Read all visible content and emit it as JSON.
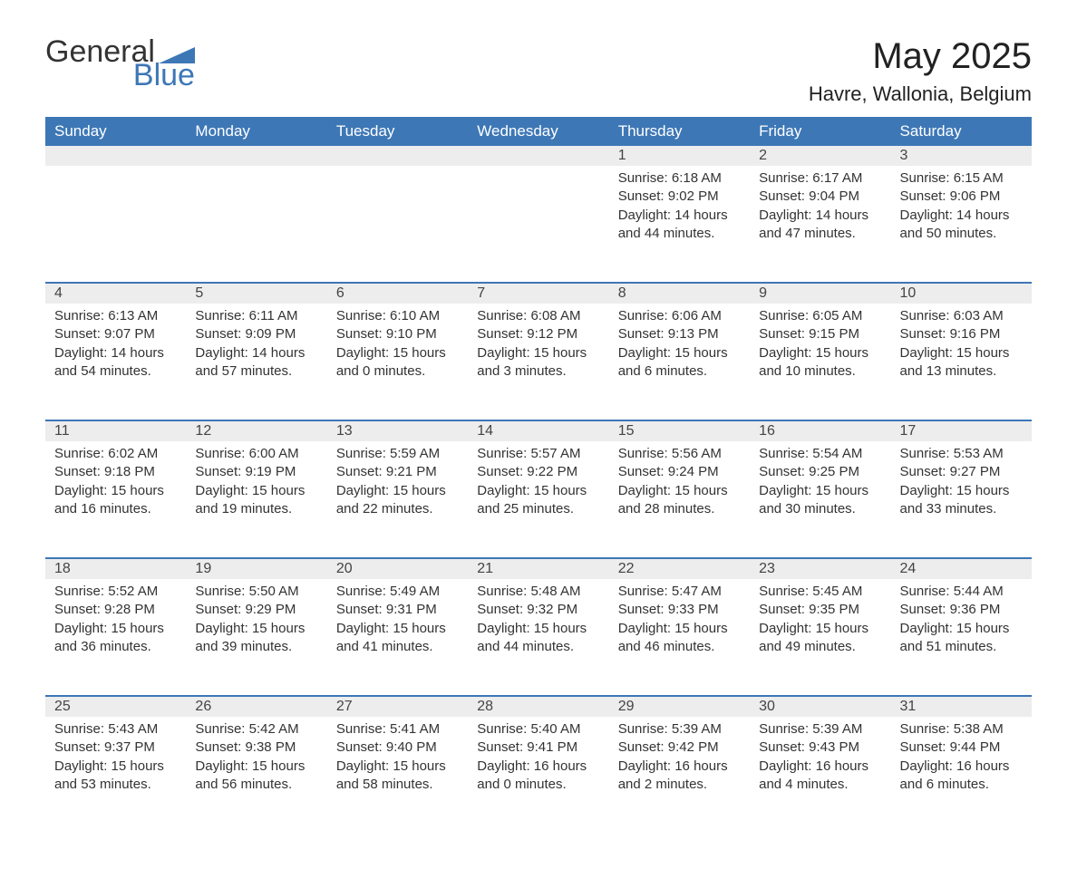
{
  "logo": {
    "text_general": "General",
    "text_blue": "Blue",
    "accent_color": "#3d77b6"
  },
  "title": "May 2025",
  "location": "Havre, Wallonia, Belgium",
  "colors": {
    "header_bg": "#3d77b6",
    "header_text": "#ffffff",
    "daynum_bg": "#ededed",
    "row_divider": "#3d77b6",
    "body_text": "#333333",
    "background": "#ffffff"
  },
  "weekdays": [
    "Sunday",
    "Monday",
    "Tuesday",
    "Wednesday",
    "Thursday",
    "Friday",
    "Saturday"
  ],
  "weeks": [
    [
      null,
      null,
      null,
      null,
      {
        "day": "1",
        "sunrise": "6:18 AM",
        "sunset": "9:02 PM",
        "daylight": "14 hours and 44 minutes."
      },
      {
        "day": "2",
        "sunrise": "6:17 AM",
        "sunset": "9:04 PM",
        "daylight": "14 hours and 47 minutes."
      },
      {
        "day": "3",
        "sunrise": "6:15 AM",
        "sunset": "9:06 PM",
        "daylight": "14 hours and 50 minutes."
      }
    ],
    [
      {
        "day": "4",
        "sunrise": "6:13 AM",
        "sunset": "9:07 PM",
        "daylight": "14 hours and 54 minutes."
      },
      {
        "day": "5",
        "sunrise": "6:11 AM",
        "sunset": "9:09 PM",
        "daylight": "14 hours and 57 minutes."
      },
      {
        "day": "6",
        "sunrise": "6:10 AM",
        "sunset": "9:10 PM",
        "daylight": "15 hours and 0 minutes."
      },
      {
        "day": "7",
        "sunrise": "6:08 AM",
        "sunset": "9:12 PM",
        "daylight": "15 hours and 3 minutes."
      },
      {
        "day": "8",
        "sunrise": "6:06 AM",
        "sunset": "9:13 PM",
        "daylight": "15 hours and 6 minutes."
      },
      {
        "day": "9",
        "sunrise": "6:05 AM",
        "sunset": "9:15 PM",
        "daylight": "15 hours and 10 minutes."
      },
      {
        "day": "10",
        "sunrise": "6:03 AM",
        "sunset": "9:16 PM",
        "daylight": "15 hours and 13 minutes."
      }
    ],
    [
      {
        "day": "11",
        "sunrise": "6:02 AM",
        "sunset": "9:18 PM",
        "daylight": "15 hours and 16 minutes."
      },
      {
        "day": "12",
        "sunrise": "6:00 AM",
        "sunset": "9:19 PM",
        "daylight": "15 hours and 19 minutes."
      },
      {
        "day": "13",
        "sunrise": "5:59 AM",
        "sunset": "9:21 PM",
        "daylight": "15 hours and 22 minutes."
      },
      {
        "day": "14",
        "sunrise": "5:57 AM",
        "sunset": "9:22 PM",
        "daylight": "15 hours and 25 minutes."
      },
      {
        "day": "15",
        "sunrise": "5:56 AM",
        "sunset": "9:24 PM",
        "daylight": "15 hours and 28 minutes."
      },
      {
        "day": "16",
        "sunrise": "5:54 AM",
        "sunset": "9:25 PM",
        "daylight": "15 hours and 30 minutes."
      },
      {
        "day": "17",
        "sunrise": "5:53 AM",
        "sunset": "9:27 PM",
        "daylight": "15 hours and 33 minutes."
      }
    ],
    [
      {
        "day": "18",
        "sunrise": "5:52 AM",
        "sunset": "9:28 PM",
        "daylight": "15 hours and 36 minutes."
      },
      {
        "day": "19",
        "sunrise": "5:50 AM",
        "sunset": "9:29 PM",
        "daylight": "15 hours and 39 minutes."
      },
      {
        "day": "20",
        "sunrise": "5:49 AM",
        "sunset": "9:31 PM",
        "daylight": "15 hours and 41 minutes."
      },
      {
        "day": "21",
        "sunrise": "5:48 AM",
        "sunset": "9:32 PM",
        "daylight": "15 hours and 44 minutes."
      },
      {
        "day": "22",
        "sunrise": "5:47 AM",
        "sunset": "9:33 PM",
        "daylight": "15 hours and 46 minutes."
      },
      {
        "day": "23",
        "sunrise": "5:45 AM",
        "sunset": "9:35 PM",
        "daylight": "15 hours and 49 minutes."
      },
      {
        "day": "24",
        "sunrise": "5:44 AM",
        "sunset": "9:36 PM",
        "daylight": "15 hours and 51 minutes."
      }
    ],
    [
      {
        "day": "25",
        "sunrise": "5:43 AM",
        "sunset": "9:37 PM",
        "daylight": "15 hours and 53 minutes."
      },
      {
        "day": "26",
        "sunrise": "5:42 AM",
        "sunset": "9:38 PM",
        "daylight": "15 hours and 56 minutes."
      },
      {
        "day": "27",
        "sunrise": "5:41 AM",
        "sunset": "9:40 PM",
        "daylight": "15 hours and 58 minutes."
      },
      {
        "day": "28",
        "sunrise": "5:40 AM",
        "sunset": "9:41 PM",
        "daylight": "16 hours and 0 minutes."
      },
      {
        "day": "29",
        "sunrise": "5:39 AM",
        "sunset": "9:42 PM",
        "daylight": "16 hours and 2 minutes."
      },
      {
        "day": "30",
        "sunrise": "5:39 AM",
        "sunset": "9:43 PM",
        "daylight": "16 hours and 4 minutes."
      },
      {
        "day": "31",
        "sunrise": "5:38 AM",
        "sunset": "9:44 PM",
        "daylight": "16 hours and 6 minutes."
      }
    ]
  ],
  "labels": {
    "sunrise": "Sunrise: ",
    "sunset": "Sunset: ",
    "daylight": "Daylight: "
  }
}
